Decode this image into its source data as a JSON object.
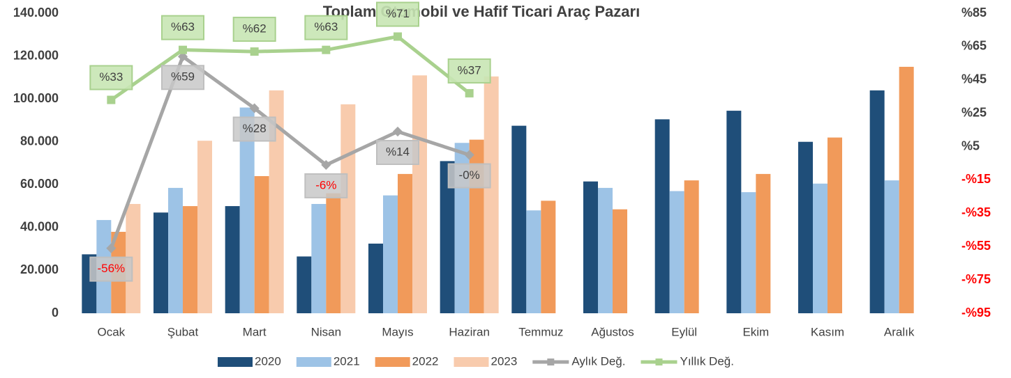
{
  "chart_data": {
    "type": "bar",
    "title": "Toplam Otomobil ve Hafif Ticari Araç Pazarı",
    "categories": [
      "Ocak",
      "Şubat",
      "Mart",
      "Nisan",
      "Mayıs",
      "Haziran",
      "Temmuz",
      "Ağustos",
      "Eylül",
      "Ekim",
      "Kasım",
      "Aralık"
    ],
    "series": [
      {
        "name": "2020",
        "color": "#1f4e79",
        "values": [
          27500,
          47000,
          50000,
          26500,
          32500,
          71000,
          87500,
          61500,
          90500,
          94500,
          80000,
          104000
        ]
      },
      {
        "name": "2021",
        "color": "#9dc3e6",
        "values": [
          43500,
          58500,
          96000,
          51000,
          55000,
          79500,
          48000,
          58500,
          57000,
          56500,
          60500,
          62000
        ]
      },
      {
        "name": "2022",
        "color": "#f19a5a",
        "values": [
          38000,
          50000,
          64000,
          56000,
          65000,
          81000,
          52500,
          48500,
          62000,
          65000,
          82000,
          115000
        ]
      },
      {
        "name": "2023",
        "color": "#f8cbad",
        "values": [
          51000,
          80500,
          104000,
          97500,
          111000,
          110500,
          null,
          null,
          null,
          null,
          null,
          null
        ]
      },
      {
        "name": "Aylık Değ.",
        "type": "line",
        "axis": "y2",
        "color": "#a6a6a6",
        "values": [
          -56,
          59,
          28,
          -6,
          14,
          0,
          null,
          null,
          null,
          null,
          null,
          null
        ],
        "value_labels": [
          "-56%",
          "%59",
          "%28",
          "-6%",
          "%14",
          "-0%",
          null,
          null,
          null,
          null,
          null,
          null
        ]
      },
      {
        "name": "Yıllık Değ.",
        "type": "line",
        "axis": "y2",
        "color": "#a9d18e",
        "values": [
          33,
          63,
          62,
          63,
          71,
          37,
          null,
          null,
          null,
          null,
          null,
          null
        ],
        "value_labels": [
          "%33",
          "%63",
          "%62",
          "%63",
          "%71",
          "%37",
          null,
          null,
          null,
          null,
          null,
          null
        ]
      }
    ],
    "ylim": [
      0,
      140000
    ],
    "yticks": [
      {
        "value": 0,
        "label": "0"
      },
      {
        "value": 20000,
        "label": "20.000"
      },
      {
        "value": 40000,
        "label": "40.000"
      },
      {
        "value": 60000,
        "label": "60.000"
      },
      {
        "value": 80000,
        "label": "80.000"
      },
      {
        "value": 100000,
        "label": "100.000"
      },
      {
        "value": 120000,
        "label": "120.000"
      },
      {
        "value": 140000,
        "label": "140.000"
      }
    ],
    "y2lim": [
      -95,
      85
    ],
    "y2ticks": [
      {
        "value": 85,
        "label": "%85"
      },
      {
        "value": 65,
        "label": "%65"
      },
      {
        "value": 45,
        "label": "%45"
      },
      {
        "value": 25,
        "label": "%25"
      },
      {
        "value": 5,
        "label": "%5"
      },
      {
        "value": -15,
        "label": "-%15"
      },
      {
        "value": -35,
        "label": "-%35"
      },
      {
        "value": -55,
        "label": "-%55"
      },
      {
        "value": -75,
        "label": "-%75"
      },
      {
        "value": -95,
        "label": "-%95"
      }
    ],
    "negative_color": "#ff0000",
    "grid": false,
    "legend": "bottom"
  }
}
